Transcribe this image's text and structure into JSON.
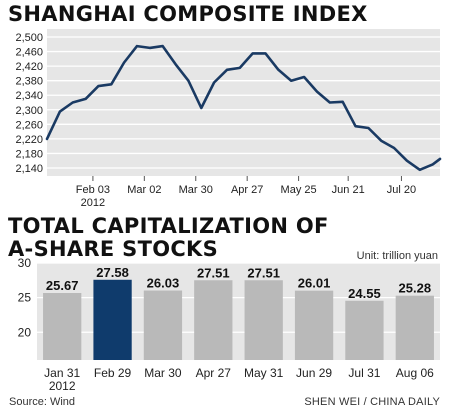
{
  "colors": {
    "line": "#1a3a63",
    "bar": "#b9b9b9",
    "bar_highlight": "#0f3b6c",
    "panel": "#e6e6e6",
    "grid": "#ffffff"
  },
  "footer": {
    "source": "Source: Wind",
    "credit": "SHEN WEI / CHINA DAILY"
  },
  "chart_data": [
    {
      "type": "line",
      "title": "SHANGHAI COMPOSITE INDEX",
      "xlabel": "",
      "ylabel": "",
      "ylim": [
        2140,
        2500
      ],
      "yticks": [
        2140,
        2180,
        2220,
        2260,
        2300,
        2340,
        2380,
        2420,
        2460,
        2500
      ],
      "ytick_labels": [
        "2,140",
        "2,180",
        "2,220",
        "2,260",
        "2,300",
        "2,340",
        "2,380",
        "2,420",
        "2,460",
        "2,500"
      ],
      "xlim": [
        "2012-01-09",
        "2012-08-10"
      ],
      "xticks": [
        {
          "label": "Feb 03",
          "date": "2012-02-03"
        },
        {
          "label": "Mar 02",
          "date": "2012-03-02"
        },
        {
          "label": "Mar 30",
          "date": "2012-03-30"
        },
        {
          "label": "Apr 27",
          "date": "2012-04-27"
        },
        {
          "label": "May 25",
          "date": "2012-05-25"
        },
        {
          "label": "Jun 21",
          "date": "2012-06-21"
        },
        {
          "label": "Jul 20",
          "date": "2012-07-20"
        }
      ],
      "year_label": "2012",
      "grid": true,
      "series": [
        {
          "x": [
            "2012-01-09",
            "2012-01-16",
            "2012-01-23",
            "2012-01-30",
            "2012-02-06",
            "2012-02-13",
            "2012-02-20",
            "2012-02-27",
            "2012-03-05",
            "2012-03-12",
            "2012-03-19",
            "2012-03-26",
            "2012-04-02",
            "2012-04-09",
            "2012-04-16",
            "2012-04-23",
            "2012-04-30",
            "2012-05-07",
            "2012-05-14",
            "2012-05-21",
            "2012-05-28",
            "2012-06-04",
            "2012-06-11",
            "2012-06-18",
            "2012-06-25",
            "2012-07-02",
            "2012-07-09",
            "2012-07-16",
            "2012-07-23",
            "2012-07-30",
            "2012-08-06",
            "2012-08-10"
          ],
          "y": [
            2220,
            2295,
            2320,
            2330,
            2365,
            2370,
            2430,
            2475,
            2470,
            2475,
            2425,
            2380,
            2305,
            2375,
            2410,
            2415,
            2455,
            2455,
            2410,
            2380,
            2390,
            2350,
            2320,
            2322,
            2255,
            2250,
            2215,
            2195,
            2160,
            2135,
            2150,
            2165
          ]
        }
      ]
    },
    {
      "type": "bar",
      "title": "TOTAL CAPITALIZATION OF A-SHARE STOCKS",
      "unit_label": "Unit: trillion yuan",
      "categories": [
        "Jan 31",
        "Feb 29",
        "Mar 30",
        "Apr 27",
        "May 31",
        "Jun 29",
        "Jul 31",
        "Aug 06"
      ],
      "year_label": "2012",
      "values": [
        25.67,
        27.58,
        26.03,
        27.51,
        27.51,
        26.01,
        24.55,
        25.28
      ],
      "value_labels": [
        "25.67",
        "27.58",
        "26.03",
        "27.51",
        "27.51",
        "26.01",
        "24.55",
        "25.28"
      ],
      "highlight_index": 1,
      "ylim": [
        16,
        30
      ],
      "yticks": [
        20,
        25,
        30
      ],
      "grid": true
    }
  ]
}
